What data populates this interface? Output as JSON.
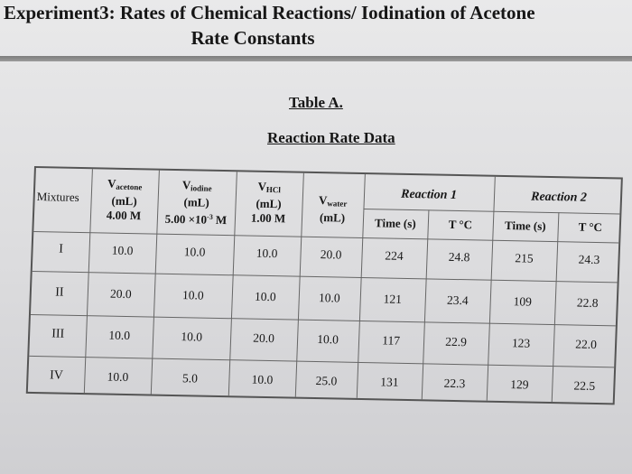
{
  "header": {
    "title_line1": "Experiment3:  Rates of Chemical Reactions/ Iodination of Acetone",
    "title_line2": "Rate Constants"
  },
  "captions": {
    "table_label": "Table A.",
    "table_title": "Reaction Rate Data"
  },
  "columns": {
    "mixtures": "Mixtures",
    "acetone": {
      "v": "V",
      "sub": "acetone",
      "unit": "(mL)",
      "conc": "4.00 M"
    },
    "iodine": {
      "v": "V",
      "sub": "iodine",
      "unit": "(mL)",
      "conc_main": "5.00 ×10",
      "conc_sup": "-3",
      "conc_tail": " M"
    },
    "hcl": {
      "v": "V",
      "sub": "HCl",
      "unit": "(mL)",
      "conc": "1.00 M"
    },
    "water": {
      "v": "V",
      "sub": "water",
      "unit": "(mL)"
    },
    "reaction1": "Reaction 1",
    "reaction2": "Reaction 2",
    "time": "Time (s)",
    "temp": "T °C"
  },
  "rows": [
    {
      "mixture": "I",
      "acetone": "10.0",
      "iodine": "10.0",
      "hcl": "10.0",
      "water": "20.0",
      "t1": "224",
      "temp1": "24.8",
      "t2": "215",
      "temp2": "24.3"
    },
    {
      "mixture": "II",
      "acetone": "20.0",
      "iodine": "10.0",
      "hcl": "10.0",
      "water": "10.0",
      "t1": "121",
      "temp1": "23.4",
      "t2": "109",
      "temp2": "22.8"
    },
    {
      "mixture": "III",
      "acetone": "10.0",
      "iodine": "10.0",
      "hcl": "20.0",
      "water": "10.0",
      "t1": "117",
      "temp1": "22.9",
      "t2": "123",
      "temp2": "22.0"
    },
    {
      "mixture": "IV",
      "acetone": "10.0",
      "iodine": "5.0",
      "hcl": "10.0",
      "water": "25.0",
      "t1": "131",
      "temp1": "22.3",
      "t2": "129",
      "temp2": "22.5"
    }
  ]
}
